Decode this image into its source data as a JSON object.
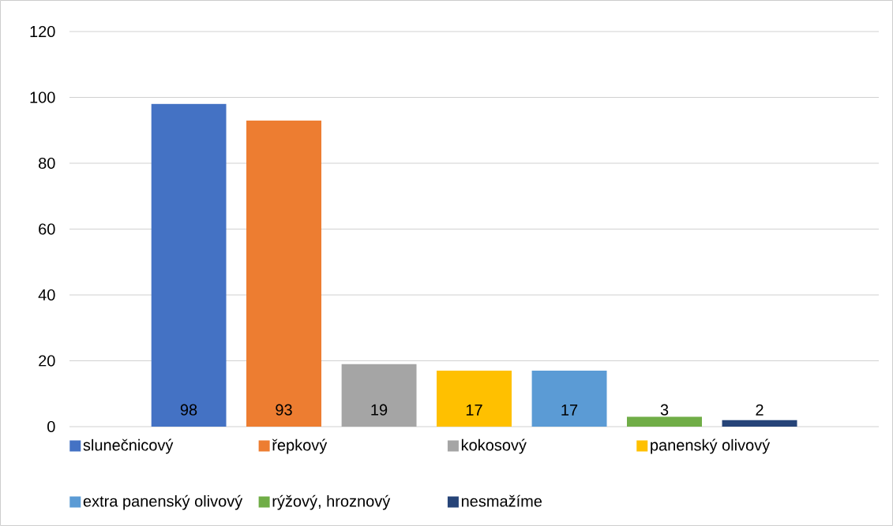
{
  "chart_data": {
    "type": "bar",
    "categories": [
      null
    ],
    "series": [
      {
        "name": "slunečnicový",
        "color": "#4472c4",
        "values": [
          98
        ]
      },
      {
        "name": "řepkový",
        "color": "#ed7d31",
        "values": [
          93
        ]
      },
      {
        "name": "kokosový",
        "color": "#a5a5a5",
        "values": [
          19
        ]
      },
      {
        "name": "panenský olivový",
        "color": "#ffc000",
        "values": [
          17
        ]
      },
      {
        "name": "extra panenský olivový",
        "color": "#5b9bd5",
        "values": [
          17
        ]
      },
      {
        "name": "rýžový, hroznový",
        "color": "#70ad47",
        "values": [
          3
        ]
      },
      {
        "name": "nesmažíme",
        "color": "#264478",
        "values": [
          2
        ]
      }
    ],
    "ylim": [
      0,
      120
    ],
    "yticks": [
      0,
      20,
      40,
      60,
      80,
      100,
      120
    ],
    "grid": "y",
    "legend": "bottom",
    "data_labels": true
  }
}
